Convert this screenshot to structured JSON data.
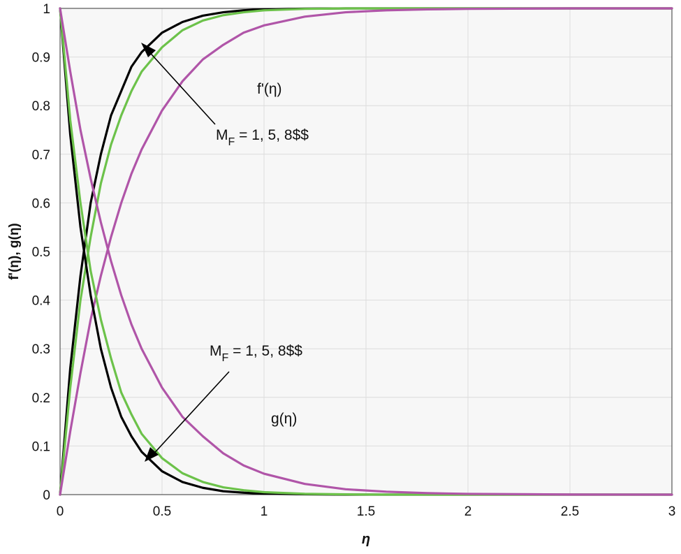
{
  "chart_data": {
    "type": "line",
    "xlabel": "η",
    "ylabel": "f'(η), g(η)",
    "xlim": [
      0,
      3
    ],
    "ylim": [
      0,
      1
    ],
    "x_ticks": [
      "0",
      "0.5",
      "1",
      "1.5",
      "2",
      "2.5",
      "3"
    ],
    "y_ticks": [
      "0",
      "0.1",
      "0.2",
      "0.3",
      "0.4",
      "0.5",
      "0.6",
      "0.7",
      "0.8",
      "0.9",
      "1"
    ],
    "grid": true,
    "x": [
      0,
      0.05,
      0.1,
      0.15,
      0.2,
      0.25,
      0.3,
      0.35,
      0.4,
      0.5,
      0.6,
      0.7,
      0.8,
      0.9,
      1.0,
      1.2,
      1.4,
      1.6,
      1.8,
      2.0,
      2.5,
      3.0
    ],
    "series": [
      {
        "group": "f'(η)",
        "param": "M_F = 8",
        "color": "#000000",
        "values": [
          0,
          0.26,
          0.45,
          0.6,
          0.7,
          0.78,
          0.83,
          0.88,
          0.91,
          0.95,
          0.972,
          0.985,
          0.992,
          0.996,
          0.998,
          0.9995,
          1,
          1,
          1,
          1,
          1,
          1
        ]
      },
      {
        "group": "f'(η)",
        "param": "M_F = 5",
        "color": "#6cc24a",
        "values": [
          0,
          0.22,
          0.4,
          0.53,
          0.64,
          0.72,
          0.78,
          0.83,
          0.87,
          0.92,
          0.955,
          0.975,
          0.986,
          0.992,
          0.996,
          0.999,
          1,
          1,
          1,
          1,
          1,
          1
        ]
      },
      {
        "group": "f'(η)",
        "param": "M_F = 1",
        "color": "#b055a8",
        "values": [
          0,
          0.13,
          0.25,
          0.36,
          0.45,
          0.53,
          0.6,
          0.66,
          0.71,
          0.79,
          0.85,
          0.895,
          0.925,
          0.95,
          0.965,
          0.983,
          0.992,
          0.996,
          0.998,
          0.999,
          1,
          1
        ]
      },
      {
        "group": "g(η)",
        "param": "M_F = 8",
        "color": "#000000",
        "values": [
          1,
          0.74,
          0.55,
          0.41,
          0.3,
          0.22,
          0.16,
          0.12,
          0.088,
          0.048,
          0.026,
          0.014,
          0.007,
          0.004,
          0.002,
          0.0006,
          0,
          0,
          0,
          0,
          0,
          0
        ]
      },
      {
        "group": "g(η)",
        "param": "M_F = 5",
        "color": "#6cc24a",
        "values": [
          1,
          0.77,
          0.6,
          0.46,
          0.36,
          0.28,
          0.21,
          0.165,
          0.125,
          0.075,
          0.044,
          0.026,
          0.015,
          0.009,
          0.005,
          0.0016,
          0.0005,
          0,
          0,
          0,
          0,
          0
        ]
      },
      {
        "group": "g(η)",
        "param": "M_F = 1",
        "color": "#b055a8",
        "values": [
          1,
          0.87,
          0.75,
          0.65,
          0.56,
          0.48,
          0.41,
          0.35,
          0.3,
          0.22,
          0.16,
          0.12,
          0.085,
          0.06,
          0.043,
          0.022,
          0.011,
          0.006,
          0.003,
          0.0015,
          0.0002,
          0
        ]
      }
    ],
    "annotations": {
      "f_label": "f'(η)",
      "g_label": "g(η)",
      "f_param_main": "M",
      "f_param_sub": "F",
      "f_param_rest": " = 1, 5, 8$$",
      "g_param_main": "M",
      "g_param_sub": "F",
      "g_param_rest": " = 1, 5, 8$$"
    }
  }
}
